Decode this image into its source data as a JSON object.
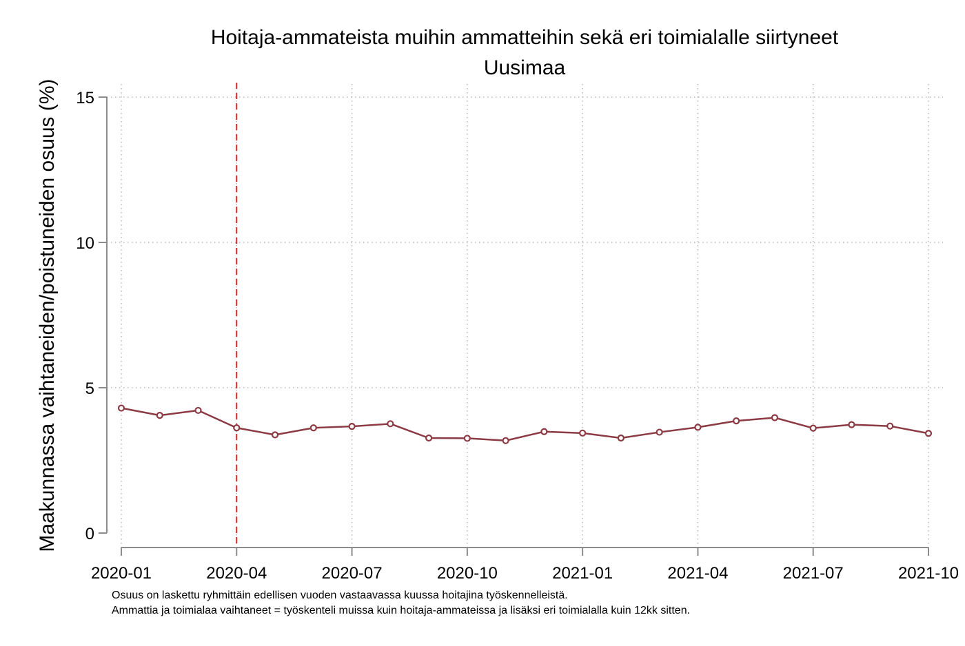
{
  "chart_data": {
    "type": "line",
    "title": "Hoitaja-ammateista muihin ammatteihin sekä eri toimialalle siirtyneet",
    "subtitle": "Uusimaa",
    "xlabel": "",
    "ylabel": "Maakunnassa vaihtaneiden/poistuneiden osuus (%)",
    "ylim": [
      0,
      15
    ],
    "yticks": [
      0,
      5,
      10,
      15
    ],
    "x": [
      "2020-01",
      "2020-02",
      "2020-03",
      "2020-04",
      "2020-05",
      "2020-06",
      "2020-07",
      "2020-08",
      "2020-09",
      "2020-10",
      "2020-11",
      "2020-12",
      "2021-01",
      "2021-02",
      "2021-03",
      "2021-04",
      "2021-05",
      "2021-06",
      "2021-07",
      "2021-08",
      "2021-09",
      "2021-10"
    ],
    "xticks": [
      "2020-01",
      "2020-04",
      "2020-07",
      "2020-10",
      "2021-01",
      "2021-04",
      "2021-07",
      "2021-10"
    ],
    "series": [
      {
        "values": [
          4.3,
          4.05,
          4.22,
          3.62,
          3.38,
          3.62,
          3.67,
          3.76,
          3.27,
          3.26,
          3.18,
          3.49,
          3.44,
          3.27,
          3.47,
          3.64,
          3.86,
          3.97,
          3.61,
          3.73,
          3.68,
          3.43
        ]
      }
    ],
    "reference_line": {
      "x": "2020-04",
      "color": "#e8211b",
      "style": "dashed"
    },
    "grid": true,
    "line_color": "#8c3a44",
    "notes": [
      "Osuus on laskettu ryhmittäin edellisen vuoden vastaavassa kuussa hoitajina työskennelleistä.",
      "Ammattia ja toimialaa vaihtaneet = työskenteli muissa kuin hoitaja-ammateissa ja lisäksi eri toimialalla kuin 12kk sitten."
    ]
  }
}
